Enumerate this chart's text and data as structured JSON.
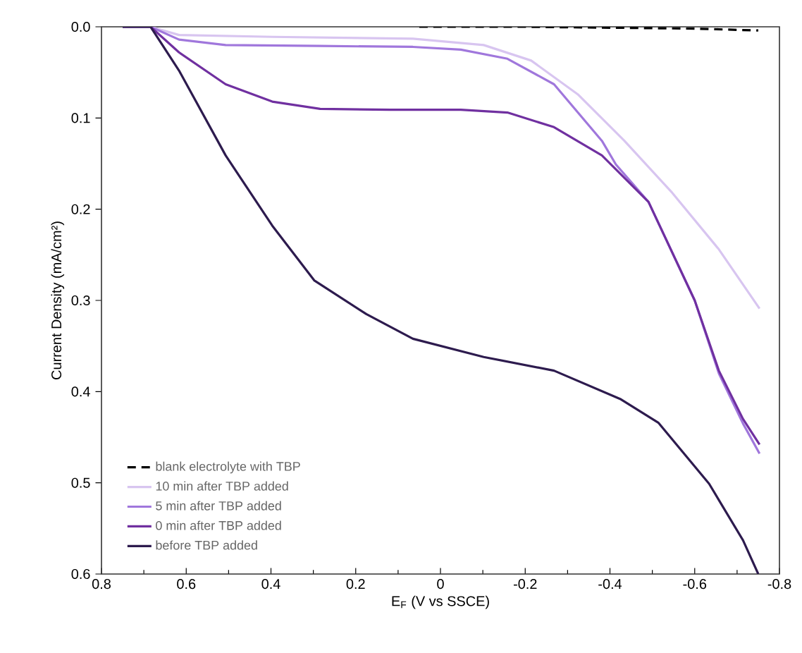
{
  "chart_data": {
    "type": "line",
    "xlabel": "E$_{F}$ (V vs SSCE)",
    "ylabel": "Current Density (mA/cm²)",
    "xlim": [
      0.8,
      -0.8
    ],
    "ylim": [
      0.6,
      0.0
    ],
    "xticks": [
      0.8,
      0.6,
      0.4,
      0.2,
      0,
      -0.2,
      -0.4,
      -0.6,
      -0.8
    ],
    "yticks": [
      {
        "value": 0.0,
        "label": "0.0"
      },
      0.1,
      0.2,
      0.3,
      0.4,
      0.5,
      0.6
    ],
    "legend": "bottom left",
    "series": [
      {
        "name": "blank electrolyte with TBP",
        "color": "#000000",
        "line_style": "dashed",
        "x": [
          0.05,
          -0.2,
          -0.4,
          -0.6,
          -0.75
        ],
        "values": [
          0.0,
          0.0,
          0.001,
          0.002,
          0.004
        ]
      },
      {
        "name": "10 min after TBP added",
        "color": "#d8c5f0",
        "x": [
          0.75,
          0.684,
          0.617,
          0.397,
          0.065,
          -0.102,
          -0.214,
          -0.324,
          -0.434,
          -0.547,
          -0.657,
          -0.753
        ],
        "values": [
          0.0,
          0.0,
          0.009,
          0.011,
          0.013,
          0.02,
          0.037,
          0.074,
          0.125,
          0.182,
          0.244,
          0.309
        ]
      },
      {
        "name": "5 min after TBP added",
        "color": "#a077dc",
        "x": [
          0.75,
          0.684,
          0.617,
          0.507,
          0.284,
          0.065,
          -0.048,
          -0.158,
          -0.268,
          -0.381,
          -0.414,
          -0.491,
          -0.6,
          -0.657,
          -0.714,
          -0.753
        ],
        "values": [
          0.0,
          0.0,
          0.014,
          0.02,
          0.021,
          0.022,
          0.025,
          0.035,
          0.063,
          0.125,
          0.151,
          0.192,
          0.3,
          0.38,
          0.435,
          0.468
        ]
      },
      {
        "name": "0 min after TBP added",
        "color": "#7030a0",
        "x": [
          0.75,
          0.684,
          0.617,
          0.507,
          0.397,
          0.284,
          0.118,
          -0.048,
          -0.158,
          -0.268,
          -0.381,
          -0.491,
          -0.6,
          -0.657,
          -0.714,
          -0.753
        ],
        "values": [
          0.0,
          0.0,
          0.028,
          0.063,
          0.082,
          0.09,
          0.091,
          0.091,
          0.094,
          0.11,
          0.141,
          0.192,
          0.3,
          0.377,
          0.43,
          0.458
        ]
      },
      {
        "name": "before TBP added",
        "color": "#2d1b4e",
        "x": [
          0.75,
          0.684,
          0.617,
          0.507,
          0.397,
          0.298,
          0.175,
          0.065,
          -0.102,
          -0.268,
          -0.424,
          -0.514,
          -0.634,
          -0.714,
          -0.75
        ],
        "values": [
          0.0,
          0.0,
          0.048,
          0.141,
          0.218,
          0.278,
          0.315,
          0.342,
          0.362,
          0.377,
          0.408,
          0.434,
          0.501,
          0.563,
          0.6
        ]
      }
    ]
  }
}
